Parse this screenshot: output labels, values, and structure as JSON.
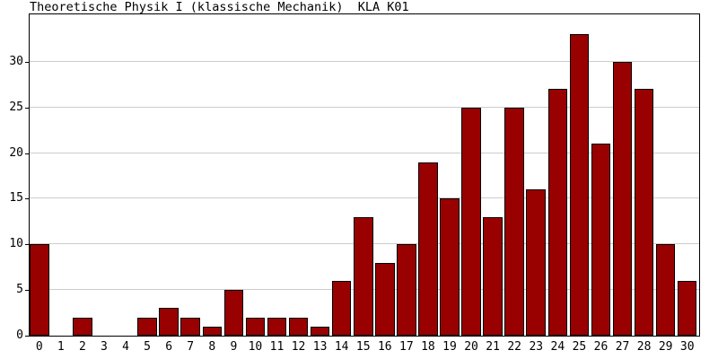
{
  "title": "Theoretische Physik I (klassische Mechanik)  KLA K01",
  "chart_data": {
    "type": "bar",
    "title": "Theoretische Physik I (klassische Mechanik)  KLA K01",
    "categories": [
      "0",
      "1",
      "2",
      "3",
      "4",
      "5",
      "6",
      "7",
      "8",
      "9",
      "10",
      "11",
      "12",
      "13",
      "14",
      "15",
      "16",
      "17",
      "18",
      "19",
      "20",
      "21",
      "22",
      "23",
      "24",
      "25",
      "26",
      "27",
      "28",
      "29",
      "30"
    ],
    "values": [
      10,
      0,
      2,
      0,
      0,
      2,
      3,
      2,
      1,
      5,
      2,
      2,
      2,
      1,
      6,
      13,
      8,
      10,
      19,
      15,
      25,
      13,
      25,
      16,
      27,
      33,
      21,
      30,
      27,
      10,
      6
    ],
    "xlabel": "",
    "ylabel": "",
    "ylim": [
      0,
      35.2
    ],
    "yticks": [
      0,
      5,
      10,
      15,
      20,
      25,
      30
    ],
    "grid": true,
    "legend": false,
    "colors": {
      "bar_fill": "#990000",
      "bar_border": "#000000",
      "grid": "#cccccc",
      "axis": "#000000",
      "background": "#ffffff",
      "text": "#000000"
    }
  }
}
